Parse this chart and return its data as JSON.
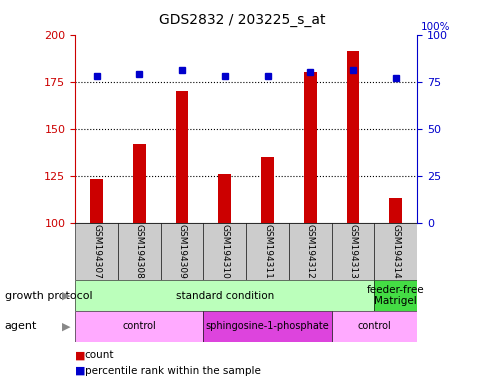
{
  "title": "GDS2832 / 203225_s_at",
  "samples": [
    "GSM194307",
    "GSM194308",
    "GSM194309",
    "GSM194310",
    "GSM194311",
    "GSM194312",
    "GSM194313",
    "GSM194314"
  ],
  "count_values": [
    123,
    142,
    170,
    126,
    135,
    180,
    191,
    113
  ],
  "percentile_values": [
    78,
    79,
    81,
    78,
    78,
    80,
    81,
    77
  ],
  "ylim_left": [
    100,
    200
  ],
  "ylim_right": [
    0,
    100
  ],
  "yticks_left": [
    100,
    125,
    150,
    175,
    200
  ],
  "yticks_right": [
    0,
    25,
    50,
    75,
    100
  ],
  "bar_color": "#cc0000",
  "dot_color": "#0000cc",
  "grid_values": [
    125,
    150,
    175
  ],
  "growth_protocol": [
    {
      "label": "standard condition",
      "start": 0,
      "end": 7,
      "color": "#bbffbb"
    },
    {
      "label": "feeder-free\nMatrigel",
      "start": 7,
      "end": 8,
      "color": "#44dd44"
    }
  ],
  "agent": [
    {
      "label": "control",
      "start": 0,
      "end": 3,
      "color": "#ffaaff"
    },
    {
      "label": "sphingosine-1-phosphate",
      "start": 3,
      "end": 6,
      "color": "#dd44dd"
    },
    {
      "label": "control",
      "start": 6,
      "end": 8,
      "color": "#ffaaff"
    }
  ],
  "legend_items": [
    {
      "label": "count",
      "color": "#cc0000"
    },
    {
      "label": "percentile rank within the sample",
      "color": "#0000cc"
    }
  ],
  "bar_color_label": "#cc0000",
  "ylabel_right_color": "#0000cc",
  "background_color": "#ffffff",
  "annotation_row1_label": "growth protocol",
  "annotation_row2_label": "agent"
}
